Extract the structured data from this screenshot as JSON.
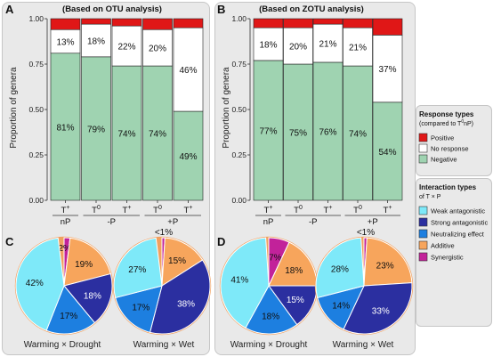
{
  "chart_data": [
    {
      "type": "bar",
      "panel_letter": "A",
      "title": "(Based on OTU analysis)",
      "ylabel": "Proportion of genera",
      "ylim": [
        0,
        1
      ],
      "yticks": [
        "0.00",
        "0.25",
        "0.50",
        "0.75",
        "1.00"
      ],
      "categories": [
        {
          "sym": "T",
          "sup": "+",
          "group": "nP"
        },
        {
          "sym": "T",
          "sup": "0",
          "group": "-P"
        },
        {
          "sym": "T",
          "sup": "+",
          "group": ""
        },
        {
          "sym": "T",
          "sup": "0",
          "group": "+P"
        },
        {
          "sym": "T",
          "sup": "+",
          "group": ""
        }
      ],
      "series": [
        {
          "key": "negative",
          "values": [
            0.81,
            0.79,
            0.74,
            0.74,
            0.49
          ]
        },
        {
          "key": "no_response",
          "values": [
            0.13,
            0.18,
            0.22,
            0.2,
            0.46
          ]
        },
        {
          "key": "positive",
          "values": [
            0.06,
            0.03,
            0.04,
            0.06,
            0.05
          ]
        }
      ],
      "labels": {
        "negative": [
          "81%",
          "79%",
          "74%",
          "74%",
          "49%"
        ],
        "no_response": [
          "13%",
          "18%",
          "22%",
          "20%",
          "46%"
        ]
      }
    },
    {
      "type": "bar",
      "panel_letter": "B",
      "title": "(Based on ZOTU analysis)",
      "ylabel": "Proportion of genera",
      "ylim": [
        0,
        1
      ],
      "yticks": [
        "0.00",
        "0.25",
        "0.50",
        "0.75",
        "1.00"
      ],
      "categories": [
        {
          "sym": "T",
          "sup": "+",
          "group": "nP"
        },
        {
          "sym": "T",
          "sup": "0",
          "group": "-P"
        },
        {
          "sym": "T",
          "sup": "+",
          "group": ""
        },
        {
          "sym": "T",
          "sup": "0",
          "group": "+P"
        },
        {
          "sym": "T",
          "sup": "+",
          "group": ""
        }
      ],
      "series": [
        {
          "key": "negative",
          "values": [
            0.77,
            0.75,
            0.76,
            0.74,
            0.54
          ]
        },
        {
          "key": "no_response",
          "values": [
            0.18,
            0.2,
            0.21,
            0.21,
            0.37
          ]
        },
        {
          "key": "positive",
          "values": [
            0.05,
            0.05,
            0.03,
            0.05,
            0.09
          ]
        }
      ],
      "labels": {
        "negative": [
          "77%",
          "75%",
          "76%",
          "74%",
          "54%"
        ],
        "no_response": [
          "18%",
          "20%",
          "21%",
          "21%",
          "37%"
        ]
      }
    },
    {
      "type": "pie",
      "panel_letter": "C",
      "pies": [
        {
          "caption": "Warming × Drought",
          "slices": [
            {
              "key": "synergistic",
              "value": 0.02,
              "label": "2%"
            },
            {
              "key": "additive",
              "value": 0.19,
              "label": "19%"
            },
            {
              "key": "strong",
              "value": 0.18,
              "label": "18%"
            },
            {
              "key": "neutralizing",
              "value": 0.17,
              "label": "17%"
            },
            {
              "key": "weak",
              "value": 0.42,
              "label": "42%"
            }
          ]
        },
        {
          "caption": "Warming × Wet",
          "slices": [
            {
              "key": "synergistic",
              "value": 0.01,
              "label": "<1%"
            },
            {
              "key": "additive",
              "value": 0.15,
              "label": "15%"
            },
            {
              "key": "strong",
              "value": 0.38,
              "label": "38%"
            },
            {
              "key": "neutralizing",
              "value": 0.17,
              "label": "17%"
            },
            {
              "key": "weak",
              "value": 0.27,
              "label": "27%"
            }
          ]
        }
      ]
    },
    {
      "type": "pie",
      "panel_letter": "D",
      "pies": [
        {
          "caption": "Warming × Drought",
          "slices": [
            {
              "key": "synergistic",
              "value": 0.07,
              "label": "7%"
            },
            {
              "key": "additive",
              "value": 0.18,
              "label": "18%"
            },
            {
              "key": "strong",
              "value": 0.15,
              "label": "15%"
            },
            {
              "key": "neutralizing",
              "value": 0.18,
              "label": "18%"
            },
            {
              "key": "weak",
              "value": 0.41,
              "label": "41%"
            }
          ]
        },
        {
          "caption": "Warming × Wet",
          "slices": [
            {
              "key": "synergistic",
              "value": 0.01,
              "label": "<1%"
            },
            {
              "key": "additive",
              "value": 0.23,
              "label": "23%"
            },
            {
              "key": "strong",
              "value": 0.33,
              "label": "33%"
            },
            {
              "key": "neutralizing",
              "value": 0.14,
              "label": "14%"
            },
            {
              "key": "weak",
              "value": 0.28,
              "label": "28%"
            }
          ]
        }
      ]
    }
  ],
  "response_legend": {
    "title": "Response types",
    "subtitle_prefix": "(compared to T",
    "subtitle_sup": "0",
    "subtitle_suffix": "nP)",
    "items": [
      {
        "key": "positive",
        "label": "Positive"
      },
      {
        "key": "no_response",
        "label": "No response"
      },
      {
        "key": "negative",
        "label": "Negative"
      }
    ]
  },
  "interaction_legend": {
    "title": "Interaction types",
    "subtitle_prefix": "of T × P",
    "items": [
      {
        "key": "weak",
        "label": "Weak antagonistic"
      },
      {
        "key": "strong",
        "label": "Strong antagonistic"
      },
      {
        "key": "neutralizing",
        "label": "Neutralizing effect"
      },
      {
        "key": "additive",
        "label": "Additive"
      },
      {
        "key": "synergistic",
        "label": "Synergistic"
      }
    ]
  },
  "colors": {
    "negative": "#9fd3b1",
    "no_response": "#ffffff",
    "positive": "#e01717",
    "weak": "#7ee9f9",
    "strong": "#2b2fa0",
    "neutralizing": "#1d7fe0",
    "additive": "#f7a55c",
    "synergistic": "#c2229a",
    "panel_bg": "#e9e9e9"
  }
}
